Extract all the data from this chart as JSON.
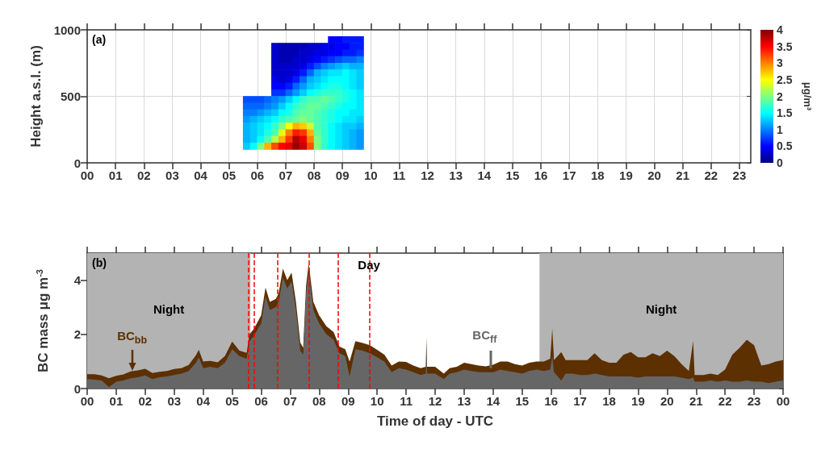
{
  "chart_data": [
    {
      "type": "scatter",
      "marker": "square",
      "ylabel": "Height a.s.l. (m)",
      "clabel": "μg/m³",
      "annotations": [
        "(a)"
      ],
      "grid": true,
      "x": [
        8.625,
        8.875,
        9.125,
        9.375,
        9.625,
        6.625,
        6.875,
        7.125,
        7.375,
        7.625,
        7.875,
        8.125,
        8.375,
        8.625,
        8.875,
        9.125,
        9.375,
        9.625,
        6.625,
        6.875,
        7.125,
        7.375,
        7.625,
        7.875,
        8.125,
        8.375,
        8.625,
        8.875,
        9.125,
        9.375,
        9.625,
        6.625,
        6.875,
        7.125,
        7.375,
        7.625,
        7.875,
        8.125,
        8.375,
        8.625,
        8.875,
        9.125,
        9.375,
        9.625,
        6.625,
        6.875,
        7.125,
        7.375,
        7.625,
        7.875,
        8.125,
        8.375,
        8.625,
        8.875,
        9.125,
        9.375,
        9.625,
        6.625,
        6.875,
        7.125,
        7.375,
        7.625,
        7.875,
        8.125,
        8.375,
        8.625,
        8.875,
        9.125,
        9.375,
        9.625,
        6.625,
        6.875,
        7.125,
        7.375,
        7.625,
        7.875,
        8.125,
        8.375,
        8.625,
        8.875,
        9.125,
        9.375,
        9.625,
        6.625,
        6.875,
        7.125,
        7.375,
        7.625,
        7.875,
        8.125,
        8.375,
        8.625,
        8.875,
        9.125,
        9.375,
        9.625,
        6.625,
        6.875,
        7.125,
        7.375,
        7.625,
        7.875,
        8.125,
        8.375,
        8.625,
        8.875,
        9.125,
        9.375,
        9.625,
        5.625,
        5.875,
        6.125,
        6.375,
        6.625,
        6.875,
        7.125,
        7.375,
        7.625,
        7.875,
        8.125,
        8.375,
        8.625,
        8.875,
        9.125,
        9.375,
        9.625,
        5.625,
        5.875,
        6.125,
        6.375,
        6.625,
        6.875,
        7.125,
        7.375,
        7.625,
        7.875,
        8.125,
        8.375,
        8.625,
        8.875,
        9.125,
        9.375,
        9.625,
        5.625,
        5.875,
        6.125,
        6.375,
        6.625,
        6.875,
        7.125,
        7.375,
        7.625,
        7.875,
        8.125,
        8.375,
        8.625,
        8.875,
        9.125,
        9.375,
        9.625,
        5.625,
        5.875,
        6.125,
        6.375,
        6.625,
        6.875,
        7.125,
        7.375,
        7.625,
        7.875,
        8.125,
        8.375,
        8.625,
        8.875,
        9.125,
        9.375,
        9.625,
        5.625,
        5.875,
        6.125,
        6.375,
        6.625,
        6.875,
        7.125,
        7.375,
        7.625,
        7.875,
        8.125,
        8.375,
        8.625,
        8.875,
        9.125,
        9.375,
        9.625,
        5.625,
        5.875,
        6.125,
        6.375,
        6.625,
        6.875,
        7.125,
        7.375,
        7.625,
        7.875,
        8.125,
        8.375,
        8.625,
        8.875,
        9.125,
        9.375,
        9.625,
        5.625,
        5.875,
        6.125,
        6.375,
        6.625,
        6.875,
        7.125,
        7.375,
        7.625,
        7.875,
        8.125,
        8.375,
        8.625,
        8.875,
        9.125,
        9.375,
        9.625,
        5.625,
        5.875,
        6.125,
        6.375,
        6.625,
        6.875,
        7.125,
        7.375,
        7.625,
        7.875,
        8.125,
        8.375,
        8.625,
        8.875,
        9.125,
        9.375,
        9.625
      ],
      "values": [
        925,
        925,
        925,
        925,
        925,
        875,
        875,
        875,
        875,
        875,
        875,
        875,
        875,
        875,
        875,
        875,
        875,
        875,
        825,
        825,
        825,
        825,
        825,
        825,
        825,
        825,
        825,
        825,
        825,
        825,
        825,
        775,
        775,
        775,
        775,
        775,
        775,
        775,
        775,
        775,
        775,
        775,
        775,
        775,
        725,
        725,
        725,
        725,
        725,
        725,
        725,
        725,
        725,
        725,
        725,
        725,
        725,
        675,
        675,
        675,
        675,
        675,
        675,
        675,
        675,
        675,
        675,
        675,
        675,
        675,
        625,
        625,
        625,
        625,
        625,
        625,
        625,
        625,
        625,
        625,
        625,
        625,
        625,
        575,
        575,
        575,
        575,
        575,
        575,
        575,
        575,
        575,
        575,
        575,
        575,
        575,
        525,
        525,
        525,
        525,
        525,
        525,
        525,
        525,
        525,
        525,
        525,
        525,
        525,
        475,
        475,
        475,
        475,
        475,
        475,
        475,
        475,
        475,
        475,
        475,
        475,
        475,
        475,
        475,
        475,
        475,
        425,
        425,
        425,
        425,
        425,
        425,
        425,
        425,
        425,
        425,
        425,
        425,
        425,
        425,
        425,
        425,
        425,
        375,
        375,
        375,
        375,
        375,
        375,
        375,
        375,
        375,
        375,
        375,
        375,
        375,
        375,
        375,
        375,
        375,
        325,
        325,
        325,
        325,
        325,
        325,
        325,
        325,
        325,
        325,
        325,
        325,
        325,
        325,
        325,
        325,
        325,
        275,
        275,
        275,
        275,
        275,
        275,
        275,
        275,
        275,
        275,
        275,
        275,
        275,
        275,
        275,
        275,
        275,
        225,
        225,
        225,
        225,
        225,
        225,
        225,
        225,
        225,
        225,
        225,
        225,
        225,
        225,
        225,
        225,
        225,
        175,
        175,
        175,
        175,
        175,
        175,
        175,
        175,
        175,
        175,
        175,
        175,
        175,
        175,
        175,
        175,
        175,
        125,
        125,
        125,
        125,
        125,
        125,
        125,
        125,
        125,
        125,
        125,
        125,
        125,
        125,
        125,
        125,
        125
      ],
      "cvalues": [
        0.5,
        0.5,
        0.6,
        0.6,
        0.6,
        0.3,
        0.2,
        0.2,
        0.2,
        0.2,
        0.3,
        0.3,
        0.4,
        0.4,
        0.5,
        0.5,
        0.6,
        0.6,
        0.3,
        0.2,
        0.2,
        0.2,
        0.3,
        0.3,
        0.4,
        0.4,
        0.5,
        0.5,
        0.6,
        0.6,
        0.7,
        0.3,
        0.2,
        0.2,
        0.3,
        0.3,
        0.4,
        0.5,
        0.6,
        0.7,
        0.8,
        0.9,
        0.9,
        1.0,
        0.3,
        0.3,
        0.3,
        0.3,
        0.4,
        0.6,
        0.8,
        1.0,
        1.1,
        1.2,
        1.3,
        1.2,
        1.2,
        0.3,
        0.3,
        0.3,
        0.4,
        0.6,
        0.9,
        1.2,
        1.3,
        1.4,
        1.4,
        1.5,
        1.4,
        1.3,
        0.4,
        0.3,
        0.4,
        0.6,
        0.9,
        1.2,
        1.3,
        1.4,
        1.5,
        1.5,
        1.5,
        1.4,
        1.3,
        0.5,
        0.5,
        0.6,
        0.9,
        1.1,
        1.3,
        1.4,
        1.5,
        1.6,
        1.6,
        1.5,
        1.4,
        1.3,
        0.7,
        0.7,
        0.9,
        1.1,
        1.3,
        1.5,
        1.6,
        1.7,
        1.7,
        1.7,
        1.6,
        1.5,
        1.4,
        0.8,
        0.8,
        0.8,
        0.9,
        1.0,
        1.1,
        1.3,
        1.5,
        1.7,
        1.8,
        1.8,
        1.9,
        1.8,
        1.7,
        1.6,
        1.5,
        1.4,
        0.9,
        0.9,
        0.9,
        1.0,
        1.1,
        1.3,
        1.5,
        1.7,
        1.8,
        1.9,
        1.9,
        1.8,
        1.7,
        1.6,
        1.5,
        1.5,
        1.4,
        1.0,
        1.0,
        1.1,
        1.2,
        1.3,
        1.5,
        1.6,
        1.8,
        1.9,
        1.9,
        1.8,
        1.7,
        1.6,
        1.5,
        1.5,
        1.4,
        1.4,
        1.1,
        1.2,
        1.3,
        1.4,
        1.5,
        1.7,
        1.8,
        1.9,
        2.0,
        1.9,
        1.8,
        1.7,
        1.6,
        1.5,
        1.4,
        1.4,
        1.3,
        1.2,
        1.3,
        1.4,
        1.5,
        1.7,
        2.0,
        2.5,
        2.8,
        2.7,
        2.3,
        1.8,
        1.7,
        1.5,
        1.4,
        1.3,
        1.3,
        1.2,
        1.2,
        1.3,
        1.4,
        1.6,
        1.8,
        2.4,
        3.0,
        3.4,
        3.3,
        2.8,
        1.9,
        1.7,
        1.5,
        1.4,
        1.3,
        1.2,
        1.1,
        1.2,
        1.3,
        1.5,
        1.8,
        2.2,
        2.8,
        3.3,
        3.8,
        3.6,
        3.0,
        2.0,
        1.7,
        1.5,
        1.4,
        1.3,
        1.2,
        1.1,
        1.3,
        1.5,
        2.0,
        2.8,
        3.2,
        3.5,
        3.6,
        3.9,
        3.7,
        3.2,
        2.0,
        1.7,
        1.5,
        1.4,
        1.3,
        1.2,
        1.1
      ],
      "xlim": [
        0,
        23.4
      ],
      "xticks": [
        {
          "value": 0,
          "label": "00"
        },
        {
          "value": 1,
          "label": "01"
        },
        {
          "value": 2,
          "label": "02"
        },
        {
          "value": 3,
          "label": "03"
        },
        {
          "value": 4,
          "label": "04"
        },
        {
          "value": 5,
          "label": "05"
        },
        {
          "value": 6,
          "label": "06"
        },
        {
          "value": 7,
          "label": "07"
        },
        {
          "value": 8,
          "label": "08"
        },
        {
          "value": 9,
          "label": "09"
        },
        {
          "value": 10,
          "label": "10"
        },
        {
          "value": 11,
          "label": "11"
        },
        {
          "value": 12,
          "label": "12"
        },
        {
          "value": 13,
          "label": "13"
        },
        {
          "value": 14,
          "label": "14"
        },
        {
          "value": 15,
          "label": "15"
        },
        {
          "value": 16,
          "label": "16"
        },
        {
          "value": 17,
          "label": "17"
        },
        {
          "value": 18,
          "label": "18"
        },
        {
          "value": 19,
          "label": "19"
        },
        {
          "value": 20,
          "label": "20"
        },
        {
          "value": 21,
          "label": "21"
        },
        {
          "value": 22,
          "label": "22"
        },
        {
          "value": 23,
          "label": "23"
        }
      ],
      "ylim": [
        0,
        1000
      ],
      "yticks": [
        0,
        500,
        1000
      ],
      "clim": [
        0,
        4
      ],
      "cticks": [
        0,
        0.5,
        1,
        1.5,
        2,
        2.5,
        3,
        3.5,
        4
      ]
    },
    {
      "type": "area",
      "stacked": true,
      "xlabel": "Time of day - UTC",
      "ylabel": "BC mass μg m$^{-3}$",
      "annotations": [
        "(b)",
        "Day"
      ],
      "x": [
        0,
        0.25,
        0.5,
        0.75,
        1,
        1.25,
        1.5,
        1.75,
        2,
        2.25,
        2.5,
        2.75,
        3,
        3.25,
        3.5,
        3.75,
        3.85,
        4,
        4.25,
        4.5,
        4.75,
        5,
        5.25,
        5.5,
        5.6,
        5.75,
        6,
        6.15,
        6.3,
        6.5,
        6.6,
        6.75,
        6.9,
        7.05,
        7.2,
        7.35,
        7.45,
        7.55,
        7.64,
        7.8,
        8,
        8.25,
        8.5,
        8.7,
        8.9,
        9.05,
        9.25,
        9.5,
        9.75,
        10,
        10.25,
        10.5,
        10.75,
        11,
        11.25,
        11.5,
        11.68,
        11.7,
        11.72,
        12,
        12.3,
        12.5,
        12.75,
        13,
        13.25,
        13.5,
        13.75,
        14,
        14.25,
        14.5,
        14.75,
        15,
        15.25,
        15.5,
        15.75,
        15.97,
        16.04,
        16.1,
        16.35,
        16.5,
        16.75,
        17,
        17.25,
        17.5,
        17.75,
        18,
        18.25,
        18.5,
        18.75,
        19,
        19.25,
        19.5,
        19.75,
        20,
        20.25,
        20.5,
        20.75,
        20.9,
        20.95,
        21.25,
        21.5,
        21.75,
        22,
        22.25,
        22.5,
        22.75,
        23,
        23.25,
        23.5,
        23.75,
        24
      ],
      "series": [
        {
          "name": "BC$_{ff}$",
          "color": "#666666",
          "values": [
            0.35,
            0.33,
            0.3,
            0.05,
            0.25,
            0.3,
            0.38,
            0.42,
            0.48,
            0.35,
            0.42,
            0.45,
            0.5,
            0.55,
            0.65,
            0.95,
            1.15,
            0.75,
            0.8,
            0.75,
            0.95,
            1.45,
            1.2,
            1.1,
            1.75,
            1.95,
            2.4,
            3.4,
            2.9,
            3.0,
            3.2,
            4.1,
            3.7,
            3.95,
            2.9,
            1.4,
            1.25,
            3.5,
            4.3,
            2.9,
            2.4,
            2.0,
            1.8,
            1.3,
            1.2,
            0.45,
            1.45,
            1.4,
            1.3,
            1.15,
            1.0,
            0.6,
            0.75,
            0.7,
            0.6,
            0.5,
            0.55,
            1.7,
            0.55,
            0.55,
            0.35,
            0.55,
            0.6,
            0.7,
            0.65,
            0.6,
            0.6,
            0.6,
            0.7,
            0.65,
            0.6,
            0.55,
            0.65,
            0.7,
            0.65,
            0.7,
            1.2,
            0.6,
            0.3,
            0.55,
            0.55,
            0.5,
            0.5,
            0.55,
            0.5,
            0.45,
            0.45,
            0.45,
            0.45,
            0.4,
            0.45,
            0.45,
            0.45,
            0.45,
            0.45,
            0.4,
            0.35,
            0.4,
            0.25,
            0.25,
            0.3,
            0.25,
            0.3,
            0.25,
            0.25,
            0.3,
            0.25,
            0.25,
            0.2,
            0.25,
            0.3
          ]
        },
        {
          "name": "BC$_{bb}$",
          "color": "#5c3000",
          "values": [
            0.18,
            0.2,
            0.18,
            0.33,
            0.22,
            0.22,
            0.25,
            0.25,
            0.25,
            0.22,
            0.2,
            0.2,
            0.22,
            0.2,
            0.22,
            0.28,
            0.28,
            0.25,
            0.22,
            0.22,
            0.25,
            0.28,
            0.2,
            0.22,
            0.25,
            0.25,
            0.3,
            0.33,
            0.3,
            0.3,
            0.3,
            0.33,
            0.3,
            0.33,
            0.3,
            0.3,
            0.25,
            0.3,
            0.33,
            0.3,
            0.3,
            0.3,
            0.28,
            0.25,
            0.25,
            0.55,
            0.3,
            0.28,
            0.3,
            0.28,
            0.25,
            0.25,
            0.25,
            0.28,
            0.25,
            0.25,
            0.25,
            0.2,
            0.25,
            0.25,
            0.2,
            0.2,
            0.2,
            0.25,
            0.25,
            0.25,
            0.22,
            0.28,
            0.3,
            0.35,
            0.3,
            0.3,
            0.3,
            0.3,
            0.35,
            0.4,
            1.0,
            0.45,
            1.05,
            0.5,
            0.5,
            0.55,
            0.55,
            0.75,
            0.55,
            0.5,
            0.5,
            0.8,
            0.9,
            0.75,
            0.7,
            0.85,
            0.75,
            0.95,
            0.75,
            0.5,
            0.3,
            1.35,
            0.25,
            0.25,
            0.25,
            0.25,
            0.4,
            1.0,
            1.25,
            1.5,
            1.35,
            0.6,
            0.7,
            0.75,
            0.75
          ]
        }
      ],
      "xlim": [
        0,
        24
      ],
      "xticks": [
        {
          "value": 0,
          "label": "00"
        },
        {
          "value": 1,
          "label": "01"
        },
        {
          "value": 2,
          "label": "02"
        },
        {
          "value": 3,
          "label": "03"
        },
        {
          "value": 4,
          "label": "04"
        },
        {
          "value": 5,
          "label": "05"
        },
        {
          "value": 6,
          "label": "06"
        },
        {
          "value": 7,
          "label": "07"
        },
        {
          "value": 8,
          "label": "08"
        },
        {
          "value": 9,
          "label": "09"
        },
        {
          "value": 10,
          "label": "10"
        },
        {
          "value": 11,
          "label": "11"
        },
        {
          "value": 12,
          "label": "12"
        },
        {
          "value": 13,
          "label": "13"
        },
        {
          "value": 14,
          "label": "14"
        },
        {
          "value": 15,
          "label": "15"
        },
        {
          "value": 16,
          "label": "16"
        },
        {
          "value": 17,
          "label": "17"
        },
        {
          "value": 18,
          "label": "18"
        },
        {
          "value": 19,
          "label": "19"
        },
        {
          "value": 20,
          "label": "20"
        },
        {
          "value": 21,
          "label": "21"
        },
        {
          "value": 22,
          "label": "22"
        },
        {
          "value": 23,
          "label": "23"
        },
        {
          "value": 24,
          "label": "00"
        }
      ],
      "ylim": [
        0,
        5
      ],
      "yticks": [
        0,
        2,
        4
      ],
      "bands": [
        {
          "axis": "x",
          "from": 0,
          "to": 5.63,
          "label": "Night",
          "color": "#b3b3b3"
        },
        {
          "axis": "x",
          "from": 15.6,
          "to": 24,
          "label": "Night",
          "color": "#b3b3b3"
        }
      ],
      "ref_lines": [
        {
          "axis": "x",
          "value": 5.57,
          "color": "#ff0000",
          "line_style": "dashed"
        },
        {
          "axis": "x",
          "value": 5.77,
          "color": "#ff0000",
          "line_style": "dashed"
        },
        {
          "axis": "x",
          "value": 6.55,
          "color": "#ff0000",
          "line_style": "dashed"
        },
        {
          "axis": "x",
          "value": 7.65,
          "color": "#ff0000",
          "line_style": "dashed"
        },
        {
          "axis": "x",
          "value": 8.65,
          "color": "#ff0000",
          "line_style": "dashed"
        },
        {
          "axis": "x",
          "value": 9.75,
          "color": "#ff0000",
          "line_style": "dashed"
        }
      ]
    }
  ]
}
